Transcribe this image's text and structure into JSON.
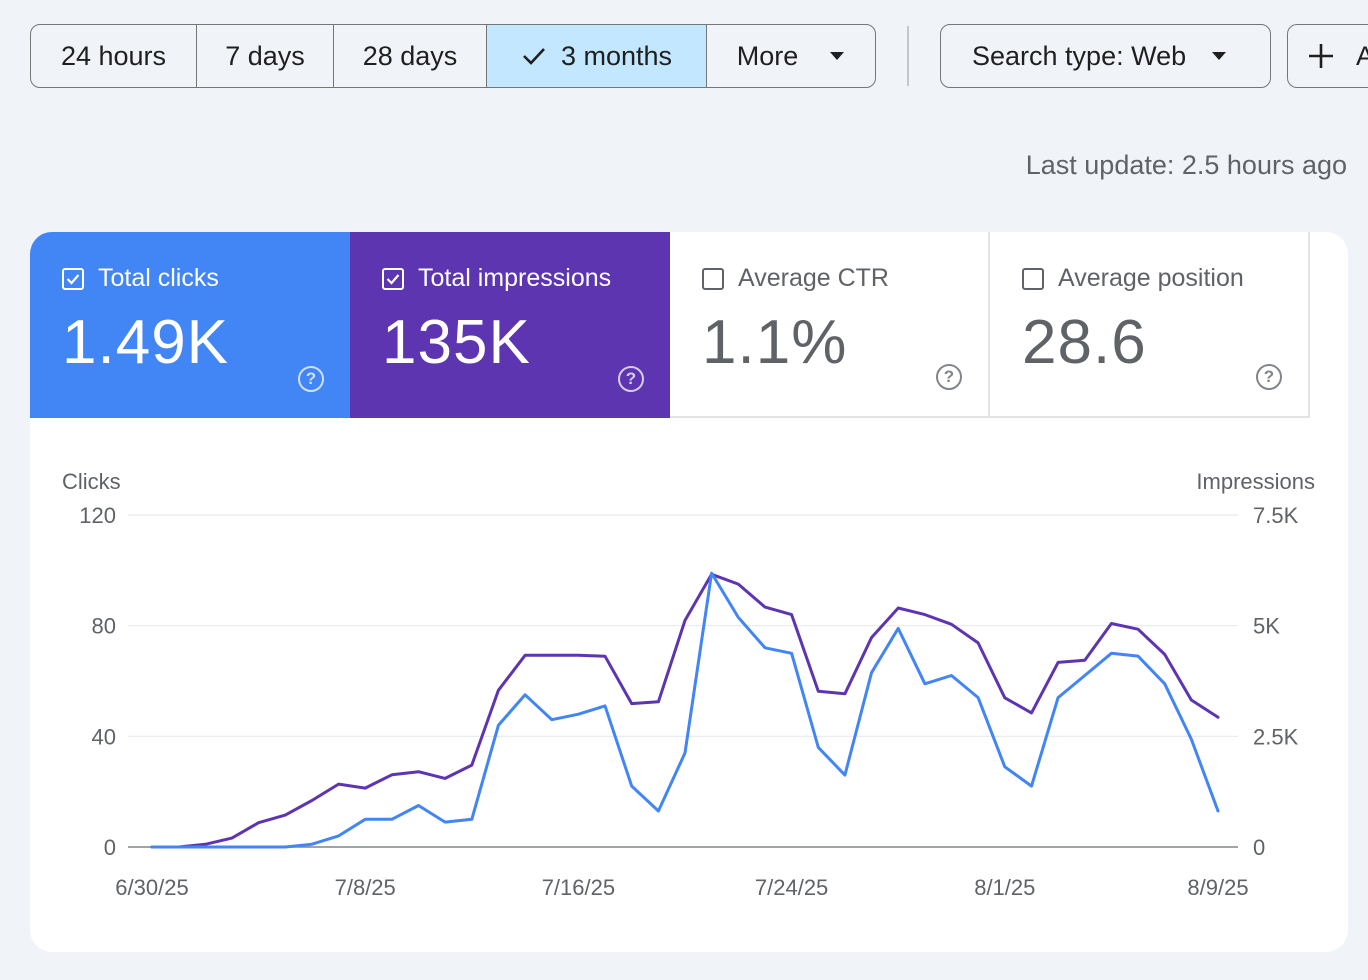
{
  "toolbar": {
    "ranges": [
      {
        "label": "24 hours",
        "active": false
      },
      {
        "label": "7 days",
        "active": false
      },
      {
        "label": "28 days",
        "active": false
      },
      {
        "label": "3 months",
        "active": true
      },
      {
        "label": "More",
        "active": false,
        "dropdown": true
      }
    ],
    "search_type_label": "Search type: Web",
    "add_filter_label": "A"
  },
  "last_update": "Last update: 2.5 hours ago",
  "metrics": [
    {
      "label": "Total clicks",
      "value": "1.49K",
      "checked": true,
      "color": "#4285f4"
    },
    {
      "label": "Total impressions",
      "value": "135K",
      "checked": true,
      "color": "#5e35b1"
    },
    {
      "label": "Average CTR",
      "value": "1.1%",
      "checked": false
    },
    {
      "label": "Average position",
      "value": "28.6",
      "checked": false
    }
  ],
  "chart_data": {
    "type": "line",
    "left_axis_label": "Clicks",
    "right_axis_label": "Impressions",
    "y_left_ticks": [
      "120",
      "80",
      "40",
      "0"
    ],
    "y_right_ticks": [
      "7.5K",
      "5K",
      "2.5K",
      "0"
    ],
    "y_left_range": [
      0,
      120
    ],
    "y_right_range": [
      0,
      7500
    ],
    "x_tick_labels": [
      "6/30/25",
      "7/8/25",
      "7/16/25",
      "7/24/25",
      "8/1/25",
      "8/9/25"
    ],
    "x_start_date": "6/30/25",
    "x_end_date": "8/9/25",
    "grid": true,
    "series": [
      {
        "name": "Clicks",
        "axis": "left",
        "color": "#4285f4",
        "values": [
          0,
          0,
          0,
          0,
          0,
          0,
          1,
          4,
          10,
          10,
          15,
          9,
          10,
          44,
          55,
          46,
          48,
          51,
          22,
          13,
          34,
          99,
          83,
          72,
          70,
          36,
          26,
          63,
          79,
          59,
          62,
          54,
          29,
          22,
          54,
          62,
          70,
          69,
          59,
          39,
          13
        ]
      },
      {
        "name": "Impressions",
        "axis": "right",
        "color": "#5e35b1",
        "values": [
          0,
          0,
          60,
          200,
          550,
          720,
          1050,
          1420,
          1330,
          1630,
          1700,
          1550,
          1850,
          3540,
          4330,
          4330,
          4330,
          4310,
          3240,
          3280,
          5120,
          6160,
          5940,
          5420,
          5250,
          3520,
          3460,
          4730,
          5400,
          5250,
          5030,
          4610,
          3370,
          3030,
          4170,
          4220,
          5050,
          4920,
          4350,
          3320,
          2930
        ]
      }
    ]
  }
}
